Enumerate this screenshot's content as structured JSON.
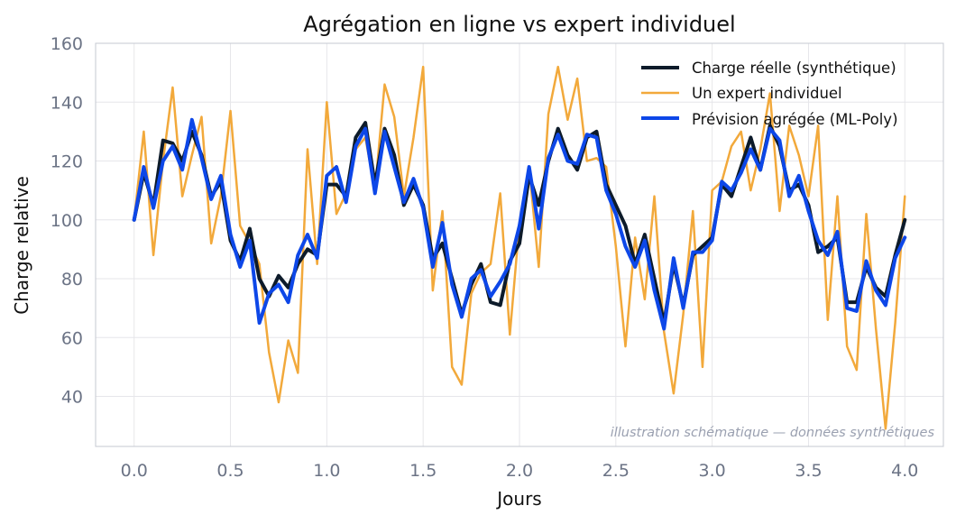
{
  "chart_data": {
    "type": "line",
    "title": "Agrégation en ligne vs expert individuel",
    "xlabel": "Jours",
    "ylabel": "Charge relative",
    "xlim": [
      -0.2,
      4.2
    ],
    "ylim": [
      23,
      160
    ],
    "xticks": [
      0.0,
      0.5,
      1.0,
      1.5,
      2.0,
      2.5,
      3.0,
      3.5,
      4.0
    ],
    "xtick_labels": [
      "0.0",
      "0.5",
      "1.0",
      "1.5",
      "2.0",
      "2.5",
      "3.0",
      "3.5",
      "4.0"
    ],
    "yticks": [
      40,
      60,
      80,
      100,
      120,
      140,
      160
    ],
    "ytick_labels": [
      "40",
      "60",
      "80",
      "100",
      "120",
      "140",
      "160"
    ],
    "grid": true,
    "legend": "top-right",
    "annotation": "illustration schématique — données synthétiques",
    "series": [
      {
        "name": "Charge réelle (synthétique)",
        "color": "#0d1b2a",
        "x": [
          0.0,
          0.05,
          0.1,
          0.15,
          0.2,
          0.25,
          0.3,
          0.35,
          0.4,
          0.45,
          0.5,
          0.55,
          0.6,
          0.65,
          0.7,
          0.75,
          0.8,
          0.85,
          0.9,
          0.95,
          1.0,
          1.05,
          1.1,
          1.15,
          1.2,
          1.25,
          1.3,
          1.35,
          1.4,
          1.45,
          1.5,
          1.55,
          1.6,
          1.65,
          1.7,
          1.75,
          1.8,
          1.85,
          1.9,
          1.95,
          2.0,
          2.05,
          2.1,
          2.15,
          2.2,
          2.25,
          2.3,
          2.35,
          2.4,
          2.45,
          2.5,
          2.55,
          2.6,
          2.65,
          2.7,
          2.75,
          2.8,
          2.85,
          2.9,
          2.95,
          3.0,
          3.05,
          3.1,
          3.15,
          3.2,
          3.25,
          3.3,
          3.35,
          3.4,
          3.45,
          3.5,
          3.55,
          3.6,
          3.65,
          3.7,
          3.75,
          3.8,
          3.85,
          3.9,
          3.95,
          4.0
        ],
        "y": [
          100,
          116,
          105,
          127,
          126,
          120,
          130,
          122,
          108,
          113,
          93,
          86,
          97,
          80,
          74,
          81,
          77,
          85,
          90,
          88,
          112,
          112,
          108,
          128,
          133,
          112,
          131,
          122,
          105,
          112,
          105,
          87,
          92,
          80,
          68,
          78,
          85,
          72,
          71,
          86,
          92,
          115,
          105,
          120,
          131,
          122,
          117,
          128,
          130,
          112,
          105,
          98,
          85,
          95,
          80,
          65,
          85,
          71,
          88,
          91,
          94,
          112,
          108,
          118,
          128,
          117,
          132,
          125,
          110,
          112,
          105,
          89,
          91,
          94,
          72,
          72,
          84,
          77,
          74,
          88,
          100
        ]
      },
      {
        "name": "Un expert individuel",
        "color": "#f2a93b",
        "x": [
          0.0,
          0.05,
          0.1,
          0.15,
          0.2,
          0.25,
          0.3,
          0.35,
          0.4,
          0.45,
          0.5,
          0.55,
          0.6,
          0.65,
          0.7,
          0.75,
          0.8,
          0.85,
          0.9,
          0.95,
          1.0,
          1.05,
          1.1,
          1.15,
          1.2,
          1.25,
          1.3,
          1.35,
          1.4,
          1.45,
          1.5,
          1.55,
          1.6,
          1.65,
          1.7,
          1.75,
          1.8,
          1.85,
          1.9,
          1.95,
          2.0,
          2.05,
          2.1,
          2.15,
          2.2,
          2.25,
          2.3,
          2.35,
          2.4,
          2.45,
          2.5,
          2.55,
          2.6,
          2.65,
          2.7,
          2.75,
          2.8,
          2.85,
          2.9,
          2.95,
          3.0,
          3.05,
          3.1,
          3.15,
          3.2,
          3.25,
          3.3,
          3.35,
          3.4,
          3.45,
          3.5,
          3.55,
          3.6,
          3.65,
          3.7,
          3.75,
          3.8,
          3.85,
          3.9,
          3.95,
          4.0
        ],
        "y": [
          100,
          130,
          88,
          120,
          145,
          108,
          122,
          135,
          92,
          108,
          137,
          98,
          92,
          85,
          55,
          38,
          59,
          48,
          124,
          85,
          140,
          102,
          109,
          124,
          128,
          110,
          146,
          135,
          108,
          128,
          152,
          76,
          103,
          50,
          44,
          75,
          82,
          85,
          109,
          61,
          99,
          118,
          84,
          136,
          152,
          134,
          148,
          120,
          121,
          118,
          91,
          57,
          94,
          73,
          108,
          62,
          41,
          68,
          103,
          50,
          110,
          113,
          125,
          130,
          110,
          124,
          143,
          103,
          132,
          122,
          108,
          132,
          66,
          108,
          57,
          49,
          102,
          63,
          29,
          65,
          108
        ]
      },
      {
        "name": "Prévision agrégée (ML-Poly)",
        "color": "#0d47e8",
        "x": [
          0.0,
          0.05,
          0.1,
          0.15,
          0.2,
          0.25,
          0.3,
          0.35,
          0.4,
          0.45,
          0.5,
          0.55,
          0.6,
          0.65,
          0.7,
          0.75,
          0.8,
          0.85,
          0.9,
          0.95,
          1.0,
          1.05,
          1.1,
          1.15,
          1.2,
          1.25,
          1.3,
          1.35,
          1.4,
          1.45,
          1.5,
          1.55,
          1.6,
          1.65,
          1.7,
          1.75,
          1.8,
          1.85,
          1.9,
          1.95,
          2.0,
          2.05,
          2.1,
          2.15,
          2.2,
          2.25,
          2.3,
          2.35,
          2.4,
          2.45,
          2.5,
          2.55,
          2.6,
          2.65,
          2.7,
          2.75,
          2.8,
          2.85,
          2.9,
          2.95,
          3.0,
          3.05,
          3.1,
          3.15,
          3.2,
          3.25,
          3.3,
          3.35,
          3.4,
          3.45,
          3.5,
          3.55,
          3.6,
          3.65,
          3.7,
          3.75,
          3.8,
          3.85,
          3.9,
          3.95,
          4.0
        ],
        "y": [
          100,
          118,
          104,
          120,
          125,
          117,
          134,
          121,
          107,
          115,
          95,
          84,
          93,
          65,
          75,
          78,
          72,
          88,
          95,
          87,
          115,
          118,
          106,
          125,
          131,
          109,
          130,
          118,
          106,
          114,
          104,
          84,
          99,
          78,
          67,
          80,
          83,
          74,
          79,
          85,
          98,
          118,
          97,
          121,
          129,
          120,
          119,
          129,
          128,
          110,
          102,
          91,
          84,
          93,
          76,
          63,
          87,
          70,
          89,
          89,
          93,
          113,
          110,
          116,
          124,
          117,
          131,
          127,
          108,
          115,
          103,
          93,
          88,
          96,
          70,
          69,
          86,
          76,
          71,
          87,
          94
        ]
      }
    ]
  }
}
